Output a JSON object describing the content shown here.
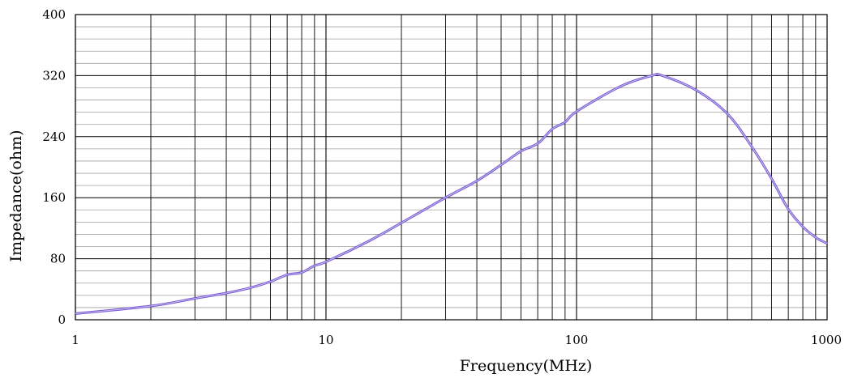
{
  "chart_data": {
    "type": "line",
    "title": "",
    "xlabel": "Frequency(MHz)",
    "ylabel": "Impedance(ohm)",
    "x_scale": "log",
    "xlim": [
      1,
      1000
    ],
    "ylim": [
      0,
      400
    ],
    "x_ticks": [
      1,
      10,
      100,
      1000
    ],
    "x_tick_labels": [
      "1",
      "10",
      "100",
      "1000"
    ],
    "y_ticks": [
      0,
      80,
      160,
      240,
      320,
      400
    ],
    "y_tick_labels": [
      "0",
      "80",
      "160",
      "240",
      "320",
      "400"
    ],
    "grid": "on",
    "legend": "none",
    "series_color": "#8b5cf6",
    "series": [
      {
        "x": [
          1,
          2,
          3,
          4,
          5,
          6,
          7,
          8,
          9,
          10,
          15,
          20,
          30,
          40,
          50,
          60,
          70,
          80,
          90,
          100,
          150,
          200,
          220,
          300,
          400,
          500,
          600,
          700,
          800,
          900,
          1000
        ],
        "y": [
          8,
          18,
          28,
          35,
          42,
          50,
          59,
          62,
          71,
          76,
          104,
          127,
          160,
          182,
          203,
          221,
          231,
          250,
          259,
          273,
          306,
          320,
          320,
          301,
          270,
          227,
          185,
          145,
          122,
          108,
          100
        ]
      }
    ]
  }
}
